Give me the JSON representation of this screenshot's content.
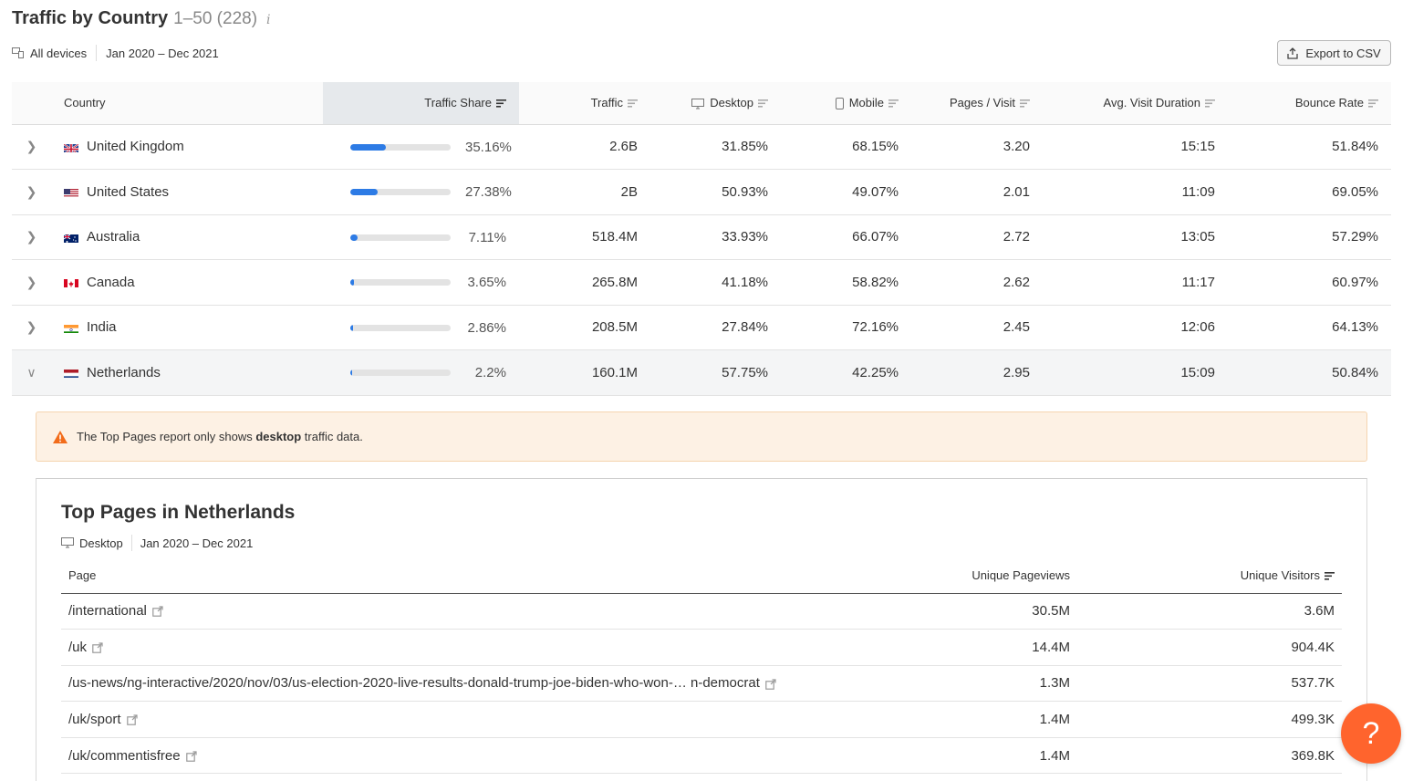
{
  "header": {
    "title": "Traffic by Country",
    "range": "1–50 (228)",
    "info": "i",
    "devices": "All devices",
    "period": "Jan 2020 – Dec 2021",
    "export_label": "Export to CSV"
  },
  "columns": {
    "country": "Country",
    "traffic_share": "Traffic Share",
    "traffic": "Traffic",
    "desktop": "Desktop",
    "mobile": "Mobile",
    "pages_visit": "Pages / Visit",
    "avg_duration": "Avg. Visit Duration",
    "bounce": "Bounce Rate"
  },
  "rows": [
    {
      "country": "United Kingdom",
      "flag": "uk-flag",
      "share": "35.16%",
      "share_fraction": 0.3516,
      "traffic": "2.6B",
      "desktop": "31.85%",
      "mobile": "68.15%",
      "pages": "3.20",
      "duration": "15:15",
      "bounce": "51.84%",
      "expanded": false
    },
    {
      "country": "United States",
      "flag": "us-flag",
      "share": "27.38%",
      "share_fraction": 0.2738,
      "traffic": "2B",
      "desktop": "50.93%",
      "mobile": "49.07%",
      "pages": "2.01",
      "duration": "11:09",
      "bounce": "69.05%",
      "expanded": false
    },
    {
      "country": "Australia",
      "flag": "au-flag",
      "share": "7.11%",
      "share_fraction": 0.0711,
      "traffic": "518.4M",
      "desktop": "33.93%",
      "mobile": "66.07%",
      "pages": "2.72",
      "duration": "13:05",
      "bounce": "57.29%",
      "expanded": false
    },
    {
      "country": "Canada",
      "flag": "ca-flag",
      "share": "3.65%",
      "share_fraction": 0.0365,
      "traffic": "265.8M",
      "desktop": "41.18%",
      "mobile": "58.82%",
      "pages": "2.62",
      "duration": "11:17",
      "bounce": "60.97%",
      "expanded": false
    },
    {
      "country": "India",
      "flag": "in-flag",
      "share": "2.86%",
      "share_fraction": 0.0286,
      "traffic": "208.5M",
      "desktop": "27.84%",
      "mobile": "72.16%",
      "pages": "2.45",
      "duration": "12:06",
      "bounce": "64.13%",
      "expanded": false
    },
    {
      "country": "Netherlands",
      "flag": "nl-flag",
      "share": "2.2%",
      "share_fraction": 0.022,
      "traffic": "160.1M",
      "desktop": "57.75%",
      "mobile": "42.25%",
      "pages": "2.95",
      "duration": "15:09",
      "bounce": "50.84%",
      "expanded": true
    }
  ],
  "warning": {
    "prefix": "The Top Pages report only shows ",
    "bold": "desktop",
    "suffix": " traffic data."
  },
  "top_pages": {
    "title": "Top Pages in Netherlands",
    "device": "Desktop",
    "period": "Jan 2020 – Dec 2021",
    "col_page": "Page",
    "col_pageviews": "Unique Pageviews",
    "col_visitors": "Unique Visitors",
    "rows": [
      {
        "page": "/international",
        "pageviews": "30.5M",
        "visitors": "3.6M"
      },
      {
        "page": "/uk",
        "pageviews": "14.4M",
        "visitors": "904.4K"
      },
      {
        "page": "/us-news/ng-interactive/2020/nov/03/us-election-2020-live-results-donald-trump-joe-biden-who-won-… n-democrat",
        "pageviews": "1.3M",
        "visitors": "537.7K"
      },
      {
        "page": "/uk/sport",
        "pageviews": "1.4M",
        "visitors": "499.3K"
      },
      {
        "page": "/uk/commentisfree",
        "pageviews": "1.4M",
        "visitors": "369.8K"
      }
    ]
  },
  "help_label": "?",
  "colors": {
    "accent": "#2d7be5",
    "help": "#ff642d",
    "warning_bg": "#fdf1e4"
  }
}
